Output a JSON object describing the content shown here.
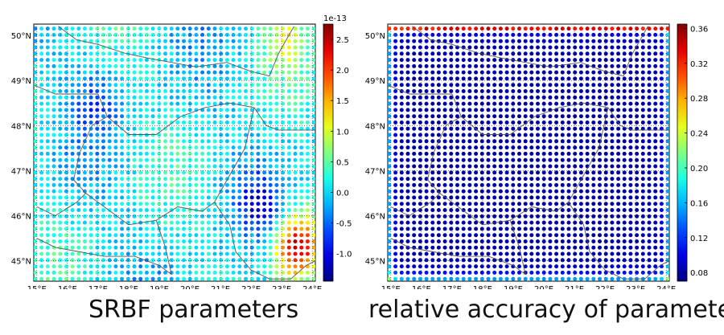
{
  "panels": [
    {
      "id": "left",
      "caption": "SRBF parameters",
      "lat_labels": [
        "50°N",
        "49°N",
        "48°N",
        "47°N",
        "46°N",
        "45°N"
      ],
      "lon_labels": [
        "15°E",
        "16°E",
        "17°E",
        "18°E",
        "19°E",
        "20°E",
        "21°E",
        "22°E",
        "23°E",
        "24°E"
      ],
      "colorbar": {
        "exponent_label": "1e-13",
        "tick_labels": [
          "2.5",
          "2.0",
          "1.5",
          "1.0",
          "0.5",
          "0.0",
          "-0.5",
          "-1.0"
        ],
        "ticks": [
          2.5,
          2.0,
          1.5,
          1.0,
          0.5,
          0.0,
          -0.5,
          -1.0
        ],
        "min": -1.45,
        "max": 2.75
      },
      "colormap": "jet"
    },
    {
      "id": "right",
      "caption": "relative accuracy of parameters",
      "lat_labels": [
        "50°N",
        "49°N",
        "48°N",
        "47°N",
        "46°N",
        "45°N"
      ],
      "lon_labels": [
        "15°E",
        "16°E",
        "17°E",
        "18°E",
        "19°E",
        "20°E",
        "21°E",
        "22°E",
        "23°E",
        "24°E"
      ],
      "colorbar": {
        "exponent_label": "",
        "tick_labels": [
          "0.36",
          "0.32",
          "0.28",
          "0.24",
          "0.20",
          "0.16",
          "0.12",
          "0.08"
        ],
        "ticks": [
          0.36,
          0.32,
          0.28,
          0.24,
          0.2,
          0.16,
          0.12,
          0.08
        ],
        "min": 0.07,
        "max": 0.365
      },
      "colormap": "jet"
    }
  ],
  "map_extent": {
    "lon": [
      14.9,
      24.1
    ],
    "lat": [
      44.55,
      50.25
    ]
  }
}
